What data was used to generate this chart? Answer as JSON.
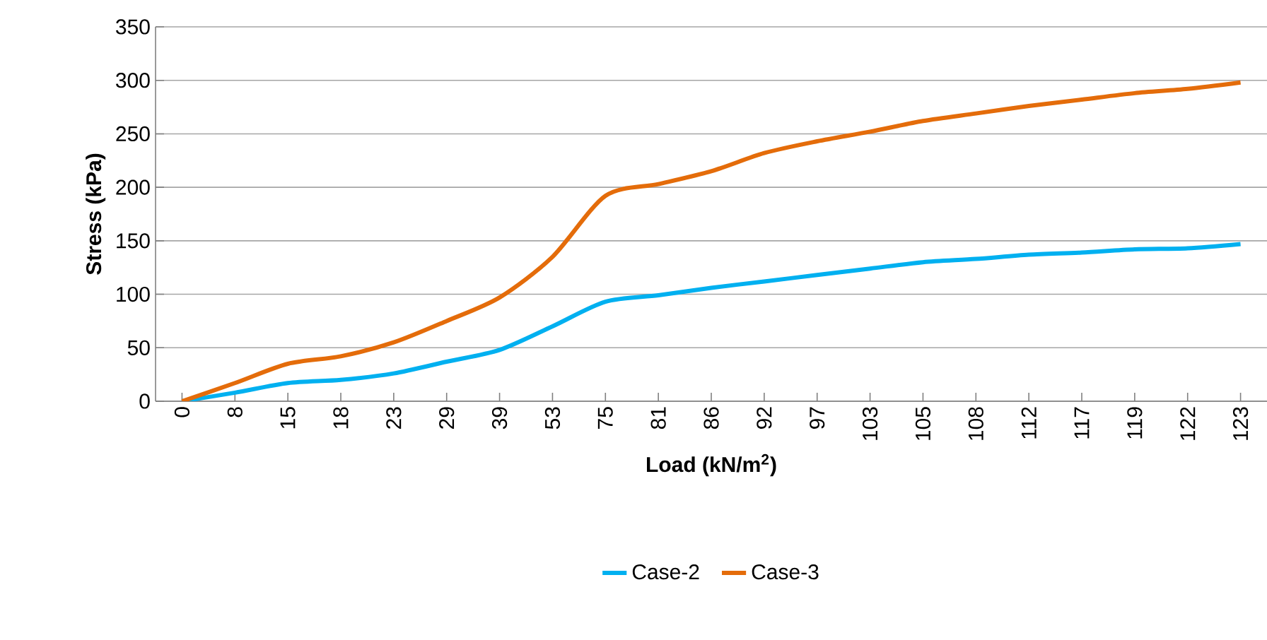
{
  "chart_data": {
    "type": "line",
    "xlabel": "Load (kN/m$^{2}$)",
    "ylabel": "Stress (kPa)",
    "categories": [
      "0",
      "8",
      "15",
      "18",
      "23",
      "29",
      "39",
      "53",
      "75",
      "81",
      "86",
      "92",
      "97",
      "103",
      "105",
      "108",
      "112",
      "117",
      "119",
      "122",
      "123"
    ],
    "series": [
      {
        "name": "Case-2",
        "color": "#00b0f0",
        "values": [
          0,
          8,
          17,
          20,
          26,
          37,
          48,
          70,
          93,
          99,
          106,
          112,
          118,
          124,
          130,
          133,
          137,
          139,
          142,
          143,
          147
        ]
      },
      {
        "name": "Case-3",
        "color": "#e46c0a",
        "values": [
          0,
          17,
          35,
          42,
          55,
          75,
          97,
          135,
          192,
          203,
          215,
          232,
          243,
          252,
          262,
          269,
          276,
          282,
          288,
          292,
          298
        ]
      }
    ],
    "ylim": [
      0,
      350
    ],
    "yticks": [
      0,
      50,
      100,
      150,
      200,
      250,
      300,
      350
    ],
    "grid": "y",
    "legend": "bottom",
    "marker": "none",
    "line_style": "solid"
  }
}
